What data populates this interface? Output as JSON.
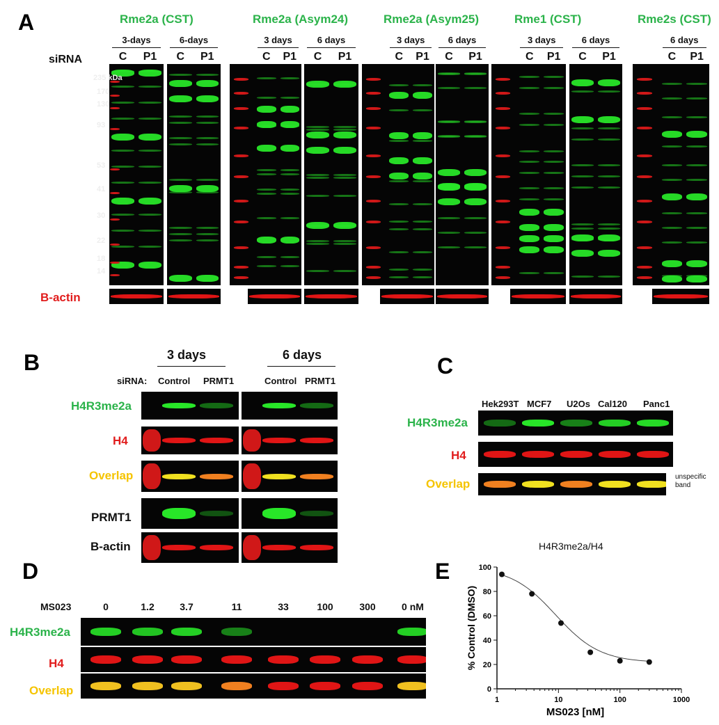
{
  "panel_a": {
    "label": "A",
    "sirna_label": "siRNA",
    "antibodies": [
      {
        "name": "Rme2a (CST)",
        "groups": [
          {
            "days": "3-days",
            "lanes": [
              "C",
              "P1"
            ]
          },
          {
            "days": "6-days",
            "lanes": [
              "C",
              "P1"
            ]
          }
        ]
      },
      {
        "name": "Rme2a (Asym24)",
        "groups": [
          {
            "days": "3 days",
            "lanes": [
              "C",
              "P1"
            ]
          },
          {
            "days": "6 days",
            "lanes": [
              "C",
              "P1"
            ]
          }
        ]
      },
      {
        "name": "Rme2a (Asym25)",
        "groups": [
          {
            "days": "3 days",
            "lanes": [
              "C",
              "P1"
            ]
          },
          {
            "days": "6 days",
            "lanes": [
              "C",
              "P1"
            ]
          }
        ]
      },
      {
        "name": "Rme1 (CST)",
        "groups": [
          {
            "days": "3 days",
            "lanes": [
              "C",
              "P1"
            ]
          },
          {
            "days": "6 days",
            "lanes": [
              "C",
              "P1"
            ]
          }
        ]
      },
      {
        "name": "Rme2s (CST)",
        "groups": [
          {
            "days": "6 days",
            "lanes": [
              "C",
              "P1"
            ]
          }
        ]
      }
    ],
    "mw_markers": [
      "235 kDa",
      "170",
      "130",
      "93",
      "53",
      "41",
      "30",
      "22",
      "18",
      "14"
    ],
    "loading_control": "B-actin"
  },
  "panel_b": {
    "label": "B",
    "timepoints": [
      "3 days",
      "6 days"
    ],
    "sirna_label": "siRNA:",
    "lanes": [
      "Control",
      "PRMT1",
      "Control",
      "PRMT1"
    ],
    "rows": [
      "H4R3me2a",
      "H4",
      "Overlap",
      "PRMT1",
      "B-actin"
    ]
  },
  "panel_c": {
    "label": "C",
    "cell_lines": [
      "Hek293T",
      "MCF7",
      "U2Os",
      "Cal120",
      "Panc1"
    ],
    "rows": [
      "H4R3me2a",
      "H4",
      "Overlap"
    ],
    "annotation": [
      "unspecific",
      "band"
    ]
  },
  "panel_d": {
    "label": "D",
    "compound": "MS023",
    "doses": [
      "0",
      "1.2",
      "3.7",
      "11",
      "33",
      "100",
      "300",
      "0 nM"
    ],
    "rows": [
      "H4R3me2a",
      "H4",
      "Overlap"
    ]
  },
  "panel_e": {
    "label": "E",
    "chart_data": {
      "type": "scatter",
      "title": "H4R3me2a/H4",
      "xlabel": "MS023 [nM]",
      "ylabel": "% Control (DMSO)",
      "xscale": "log",
      "xlim": [
        1,
        1000
      ],
      "ylim": [
        0,
        100
      ],
      "xticks": [
        "1",
        "10",
        "100",
        "1000"
      ],
      "yticks": [
        "0",
        "20",
        "40",
        "60",
        "80",
        "100"
      ],
      "x": [
        1.2,
        3.7,
        11,
        33,
        100,
        300
      ],
      "y": [
        94,
        78,
        54,
        30,
        23,
        22
      ],
      "fit": "sigmoidal dose-response curve"
    }
  },
  "colors": {
    "green": "#2bb34a",
    "red": "#e11d1d",
    "overlap": "#f5c400"
  }
}
